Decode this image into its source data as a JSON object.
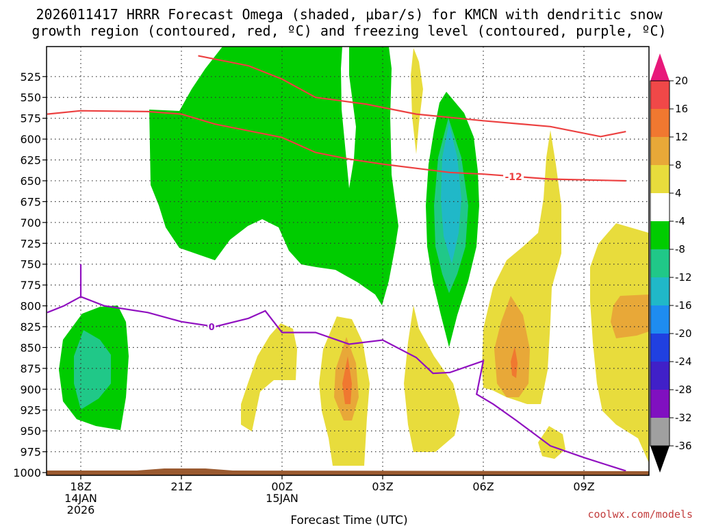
{
  "chart_data": {
    "type": "contour",
    "title_line1": "2026011417 HRRR Forecast Omega (shaded, μbar/s) for KMCN with dendritic snow",
    "title_line2": "growth region (contoured, red, ºC) and freezing level (contoured, purple, ºC)",
    "xlabel": "Forecast Time (UTC)",
    "credit": "coolwx.com/models",
    "x_range_hours": [
      -1.0,
      16.25
    ],
    "y_range_hpa": [
      1000,
      500
    ],
    "y_ticks": [
      525,
      550,
      575,
      600,
      625,
      650,
      675,
      700,
      725,
      750,
      775,
      800,
      825,
      850,
      875,
      900,
      925,
      950,
      975,
      1000
    ],
    "x_ticks": [
      {
        "hour": 0,
        "label": "18Z",
        "sub1": "14JAN",
        "sub2": "2026"
      },
      {
        "hour": 3,
        "label": "21Z",
        "sub1": "",
        "sub2": ""
      },
      {
        "hour": 6,
        "label": "00Z",
        "sub1": "15JAN",
        "sub2": ""
      },
      {
        "hour": 9,
        "label": "03Z",
        "sub1": "",
        "sub2": ""
      },
      {
        "hour": 12,
        "label": "06Z",
        "sub1": "",
        "sub2": ""
      },
      {
        "hour": 15,
        "label": "09Z",
        "sub1": "",
        "sub2": ""
      }
    ],
    "colorbar": {
      "labels": [
        20,
        16,
        12,
        8,
        4,
        -4,
        -8,
        -12,
        -16,
        -20,
        -24,
        -28,
        -32,
        -36
      ],
      "colors": [
        "#f04848",
        "#f07830",
        "#e8a838",
        "#e8dc3c",
        "#ffffff",
        "#00cc00",
        "#20c888",
        "#20b8c8",
        "#1e8cf0",
        "#2040e0",
        "#4020c8",
        "#8010c0",
        "#a0a0a0"
      ],
      "top_arrow_color": "#e8187a",
      "bottom_arrow_color": "#000000"
    },
    "dgz_line": {
      "name": "-12 C isotherm (upper)",
      "label": "-12",
      "points": [
        [
          3.5,
          500
        ],
        [
          5.0,
          512
        ],
        [
          6.0,
          528
        ],
        [
          7.0,
          550
        ],
        [
          8.5,
          558
        ],
        [
          10.0,
          570
        ],
        [
          12.0,
          578
        ],
        [
          14.0,
          585
        ],
        [
          15.5,
          597
        ],
        [
          16.25,
          591
        ]
      ]
    },
    "dgz_line_lower": {
      "name": "-12 C isotherm (lower)",
      "label": "-12",
      "label_at": [
        12.9,
        645
      ],
      "points": [
        [
          -1.0,
          570
        ],
        [
          0.0,
          566
        ],
        [
          2.0,
          567
        ],
        [
          3.0,
          570
        ],
        [
          4.0,
          582
        ],
        [
          5.0,
          590
        ],
        [
          6.0,
          598
        ],
        [
          7.0,
          616
        ],
        [
          8.0,
          624
        ],
        [
          9.0,
          630
        ],
        [
          11.0,
          640
        ],
        [
          12.0,
          642
        ],
        [
          14.0,
          648
        ],
        [
          16.25,
          650
        ]
      ]
    },
    "freezing_line": {
      "name": "0 C isotherm",
      "label": "0",
      "points": [
        [
          -1.0,
          808
        ],
        [
          -0.5,
          800
        ],
        [
          0.0,
          789
        ],
        [
          0.7,
          800
        ],
        [
          2.0,
          808
        ],
        [
          3.0,
          819
        ],
        [
          4.0,
          825
        ],
        [
          5.0,
          815
        ],
        [
          5.5,
          806
        ],
        [
          6.0,
          832
        ],
        [
          7.0,
          832
        ],
        [
          8.0,
          846
        ],
        [
          9.0,
          841
        ],
        [
          10.0,
          862
        ],
        [
          10.5,
          881
        ],
        [
          11.0,
          880
        ],
        [
          12.0,
          866
        ],
        [
          11.8,
          906
        ],
        [
          12.3,
          918
        ],
        [
          13.0,
          938
        ],
        [
          14.0,
          968
        ],
        [
          15.0,
          982
        ],
        [
          16.25,
          998
        ]
      ],
      "spike": [
        [
          0.0,
          789
        ],
        [
          0.0,
          750
        ]
      ],
      "label_at": [
        3.9,
        825
      ]
    }
  }
}
